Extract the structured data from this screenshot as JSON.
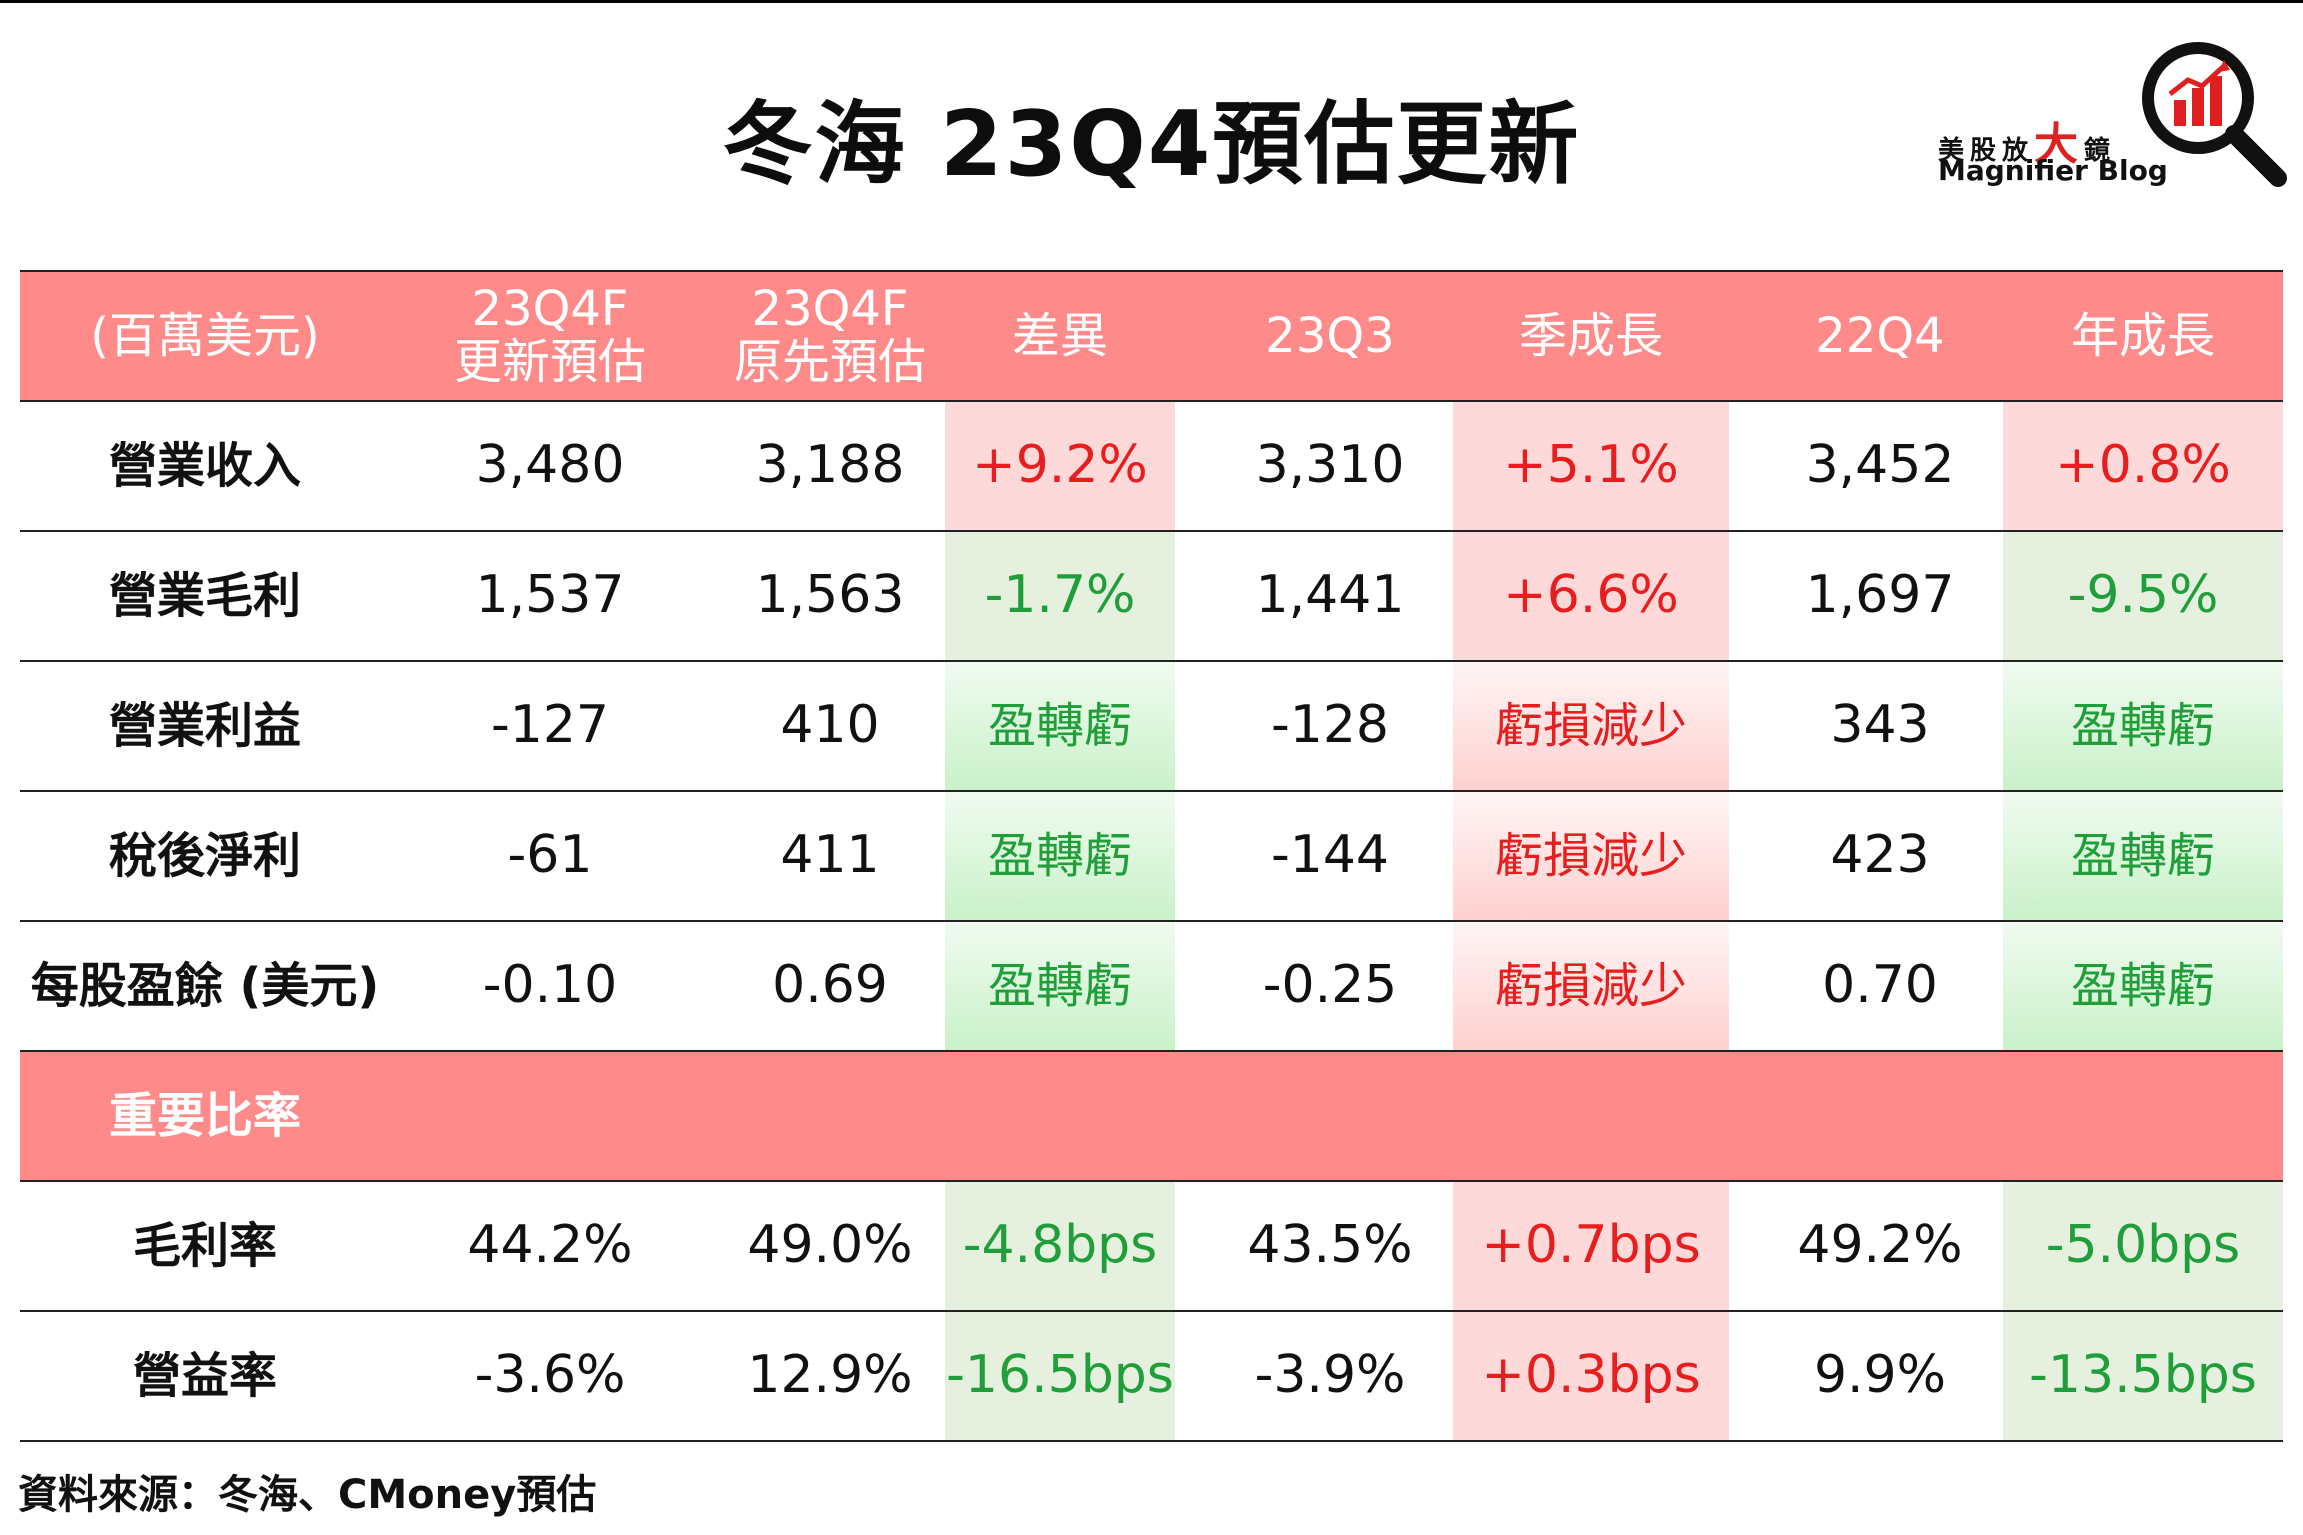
{
  "title": "冬海 23Q4預估更新",
  "logo": {
    "cn_prefix": "美股放",
    "cn_big": "大",
    "cn_suffix": "鏡",
    "en": "Magnifier Blog"
  },
  "colors": {
    "header_bg": "#ff8a8a",
    "positive": "#e81e1e",
    "negative": "#1f9e3a",
    "positive_bg": "#fdd9d9",
    "negative_bg": "#e6f0df"
  },
  "chart_data": {
    "type": "table",
    "title": "冬海 23Q4預估更新",
    "columns": [
      "(百萬美元)",
      "23Q4F\n更新預估",
      "23Q4F\n原先預估",
      "差異",
      "23Q3",
      "季成長",
      "22Q4",
      "年成長"
    ],
    "rows": [
      {
        "label": "營業收入",
        "values": [
          "3,480",
          "3,188",
          "+9.2%",
          "3,310",
          "+5.1%",
          "3,452",
          "+0.8%"
        ],
        "styles": [
          "",
          "",
          "pos",
          "",
          "pos",
          "",
          "pos"
        ]
      },
      {
        "label": "營業毛利",
        "values": [
          "1,537",
          "1,563",
          "-1.7%",
          "1,441",
          "+6.6%",
          "1,697",
          "-9.5%"
        ],
        "styles": [
          "",
          "",
          "neg",
          "",
          "pos",
          "",
          "neg"
        ]
      },
      {
        "label": "營業利益",
        "values": [
          "-127",
          "410",
          "盈轉虧",
          "-128",
          "虧損減少",
          "343",
          "盈轉虧"
        ],
        "styles": [
          "",
          "",
          "neg-grad",
          "",
          "pos-grad",
          "",
          "neg-grad"
        ]
      },
      {
        "label": "稅後淨利",
        "values": [
          "-61",
          "411",
          "盈轉虧",
          "-144",
          "虧損減少",
          "423",
          "盈轉虧"
        ],
        "styles": [
          "",
          "",
          "neg-grad",
          "",
          "pos-grad",
          "",
          "neg-grad"
        ]
      },
      {
        "label": "每股盈餘 (美元)",
        "values": [
          "-0.10",
          "0.69",
          "盈轉虧",
          "-0.25",
          "虧損減少",
          "0.70",
          "盈轉虧"
        ],
        "styles": [
          "",
          "",
          "neg-grad",
          "",
          "pos-grad",
          "",
          "neg-grad"
        ]
      }
    ],
    "section_label": "重要比率",
    "ratio_rows": [
      {
        "label": "毛利率",
        "values": [
          "44.2%",
          "49.0%",
          "-4.8bps",
          "43.5%",
          "+0.7bps",
          "49.2%",
          "-5.0bps"
        ],
        "styles": [
          "",
          "",
          "neg",
          "",
          "pos",
          "",
          "neg"
        ]
      },
      {
        "label": "營益率",
        "values": [
          "-3.6%",
          "12.9%",
          "-16.5bps",
          "-3.9%",
          "+0.3bps",
          "9.9%",
          "-13.5bps"
        ],
        "styles": [
          "",
          "",
          "neg",
          "",
          "pos",
          "",
          "neg"
        ]
      }
    ]
  },
  "source": "資料來源：冬海、CMoney預估"
}
